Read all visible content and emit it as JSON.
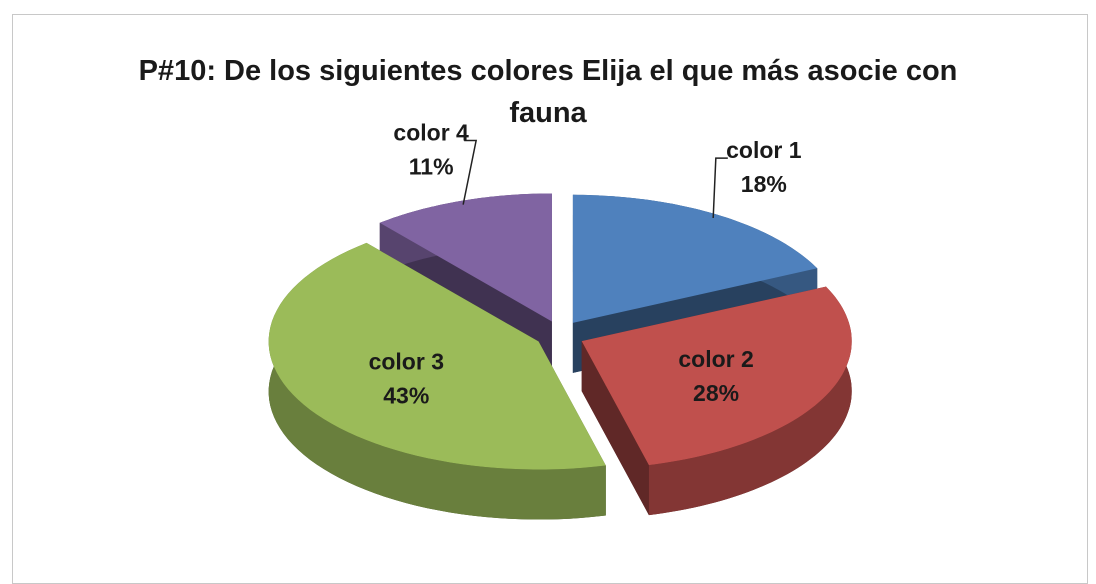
{
  "chart_data": {
    "type": "pie",
    "title": "P#10: De los siguientes colores Elija el que más asocie con fauna",
    "categories": [
      "color 1",
      "color 2",
      "color 3",
      "color 4"
    ],
    "values": [
      18,
      28,
      43,
      11
    ],
    "value_labels": [
      "18%",
      "28%",
      "43%",
      "11%"
    ],
    "colors": [
      "#4f81bd",
      "#c0504d",
      "#9bbb59",
      "#8064a2"
    ]
  }
}
